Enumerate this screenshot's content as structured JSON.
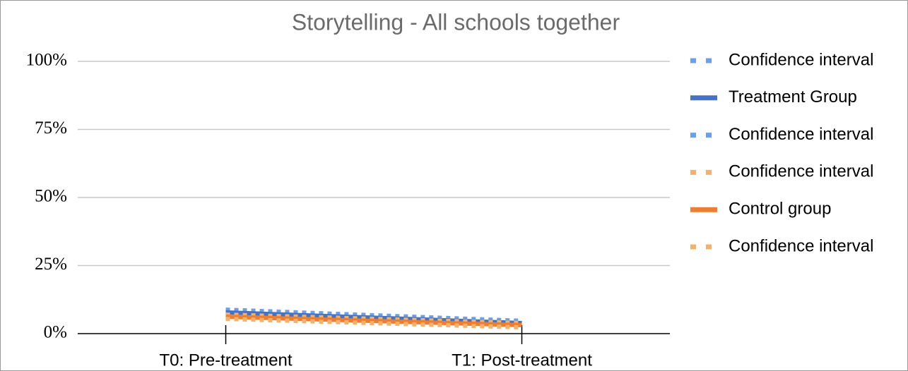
{
  "chart_data": {
    "type": "line",
    "title": "Storytelling - All schools together",
    "categories": [
      "T0: Pre-treatment",
      "T1: Post-treatment"
    ],
    "series": [
      {
        "name": "Confidence interval",
        "color": "#6c9fe8",
        "dash": true,
        "values": [
          8.8,
          4.7
        ]
      },
      {
        "name": "Treatment Group",
        "color": "#4472c4",
        "dash": false,
        "values": [
          7.8,
          3.9
        ]
      },
      {
        "name": "Confidence interval",
        "color": "#6c9fe8",
        "dash": true,
        "values": [
          6.7,
          3.4
        ]
      },
      {
        "name": "Confidence interval",
        "color": "#f4b16b",
        "dash": true,
        "values": [
          7.0,
          3.9
        ]
      },
      {
        "name": "Control group",
        "color": "#ed7d31",
        "dash": false,
        "values": [
          6.2,
          3.1
        ]
      },
      {
        "name": "Confidence interval",
        "color": "#f4b16b",
        "dash": true,
        "values": [
          5.4,
          2.3
        ]
      }
    ],
    "ylim": [
      0,
      100
    ],
    "yticks": [
      {
        "value": 0,
        "label": "0%"
      },
      {
        "value": 25,
        "label": "25%"
      },
      {
        "value": 50,
        "label": "50%"
      },
      {
        "value": 75,
        "label": "75%"
      },
      {
        "value": 100,
        "label": "100%"
      }
    ],
    "grid": true,
    "legend": "right"
  }
}
